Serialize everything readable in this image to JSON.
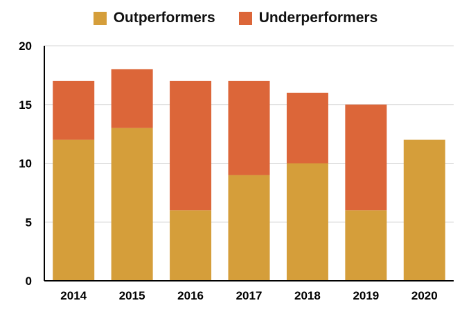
{
  "chart_data": {
    "type": "bar",
    "stacked": true,
    "categories": [
      "2014",
      "2015",
      "2016",
      "2017",
      "2018",
      "2019",
      "2020"
    ],
    "series": [
      {
        "name": "Outperformers",
        "values": [
          12,
          13,
          6,
          9,
          10,
          6,
          12
        ],
        "color": "#D59E3A"
      },
      {
        "name": "Underperformers",
        "values": [
          5,
          5,
          11,
          8,
          6,
          9,
          0
        ],
        "color": "#DC6639"
      }
    ],
    "title": "",
    "xlabel": "",
    "ylabel": "",
    "ylim": [
      0,
      20
    ],
    "yticks": [
      "0",
      "5",
      "10",
      "15",
      "20"
    ],
    "grid": true,
    "legend": "top-center"
  }
}
